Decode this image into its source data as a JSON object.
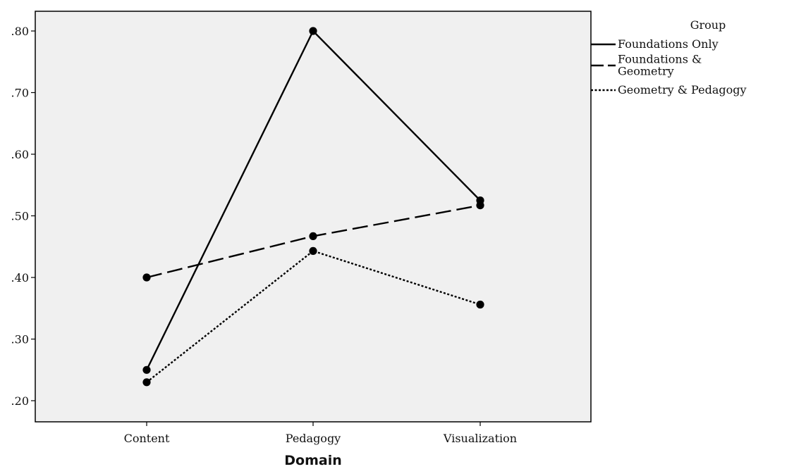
{
  "chart_data": {
    "type": "line",
    "title": "",
    "xlabel": "Domain",
    "ylabel": "",
    "categories": [
      "Content",
      "Pedagogy",
      "Visualization"
    ],
    "ylim": [
      0.18,
      0.83
    ],
    "yticks": [
      ".20",
      ".30",
      ".40",
      ".50",
      ".60",
      ".70",
      ".80"
    ],
    "ytick_values": [
      0.2,
      0.3,
      0.4,
      0.5,
      0.6,
      0.7,
      0.8
    ],
    "grid": false,
    "legend": {
      "title": "Group",
      "placement": "right",
      "entries": [
        {
          "label_lines": [
            "Foundations Only"
          ],
          "style": "solid"
        },
        {
          "label_lines": [
            "Foundations &",
            "Geometry"
          ],
          "style": "dashed"
        },
        {
          "label_lines": [
            "Geometry & Pedagogy"
          ],
          "style": "dotted"
        }
      ]
    },
    "series": [
      {
        "name": "Foundations Only",
        "style": "solid",
        "values": [
          0.25,
          0.8,
          0.525
        ]
      },
      {
        "name": "Foundations & Geometry",
        "style": "dashed",
        "values": [
          0.4,
          0.467,
          0.517
        ]
      },
      {
        "name": "Geometry & Pedagogy",
        "style": "dotted",
        "values": [
          0.23,
          0.443,
          0.356
        ]
      }
    ],
    "colors": {
      "plot_background": "#f0f0f0",
      "line": "#000000"
    }
  }
}
